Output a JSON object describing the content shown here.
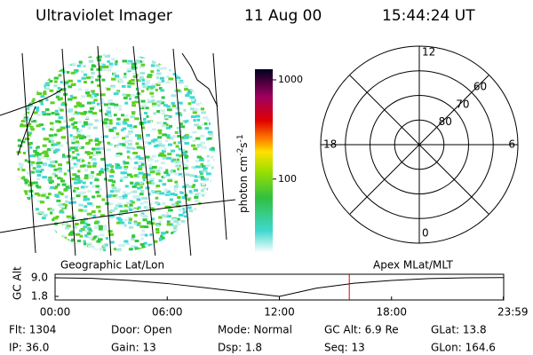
{
  "header": {
    "title": "Ultraviolet Imager",
    "date": "11 Aug 00",
    "time": "15:44:24 UT"
  },
  "colorbar": {
    "label": "photon cm",
    "exp1": "-2",
    "unit2": "s",
    "exp2": "-1",
    "log": true,
    "range": [
      18,
      1280
    ],
    "ticks": [
      100,
      1000
    ]
  },
  "polar": {
    "mlt_labels": [
      "12",
      "6",
      "0",
      "18"
    ],
    "lat_rings": [
      50,
      60,
      70,
      80
    ],
    "lat_labels": [
      60,
      70,
      80
    ]
  },
  "altitude": {
    "title_left": "Geographic Lat/Lon",
    "title_right": "Apex MLat/MLT",
    "ylabel": "GC Alt",
    "ylim": [
      0.4,
      10.4
    ],
    "yticks": [
      {
        "value": 9,
        "label": "9.0"
      },
      {
        "value": 1.8,
        "label": "1.8"
      }
    ],
    "xlim": [
      0,
      24
    ],
    "xticks": [
      {
        "value": 0,
        "label": "00:00"
      },
      {
        "value": 6,
        "label": "06:00"
      },
      {
        "value": 12,
        "label": "12:00"
      },
      {
        "value": 18,
        "label": "18:00"
      },
      {
        "value": 23.98,
        "label": "23:59"
      }
    ],
    "x": [
      0,
      2,
      4,
      6,
      8,
      10,
      12,
      14,
      16,
      18,
      20,
      22,
      24
    ],
    "values": [
      9.0,
      8.8,
      8.0,
      6.8,
      5.2,
      3.5,
      1.8,
      5.0,
      6.9,
      8.0,
      8.7,
      9.0,
      9.1
    ],
    "current_time": 15.74,
    "current_color": "#e00000"
  },
  "info": {
    "rows": [
      [
        "Flt: 1304",
        "Door: Open",
        "Mode: Normal",
        "GC Alt: 6.9 Re",
        "GLat: 13.8"
      ],
      [
        "IP: 36.0",
        "Gain: 13",
        "Dsp: 1.8",
        "Seq: 13",
        "GLon: 164.6"
      ]
    ]
  }
}
